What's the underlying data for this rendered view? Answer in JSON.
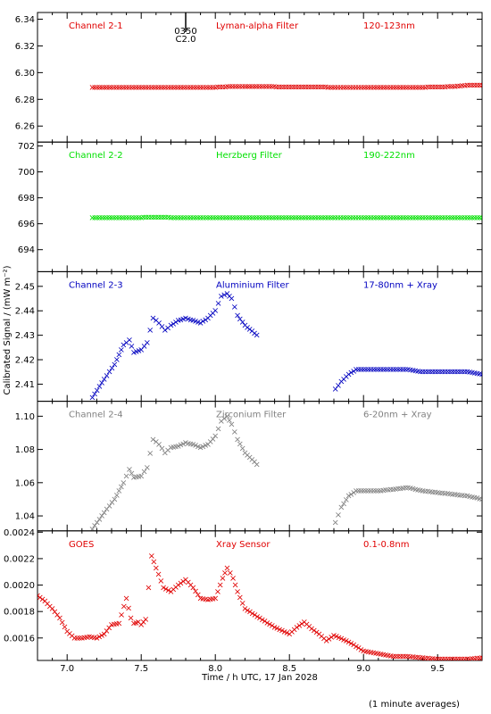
{
  "figure": {
    "xlabel": "Time / h UTC, 17 Jan 2028",
    "ylabel": "Calibrated Signal / (mW m⁻²)",
    "footnote": "(1 minute averages)",
    "marker": "0350 C2.0",
    "marker_lines": [
      "0350",
      "C2.0"
    ],
    "marker_x": 7.8
  },
  "chart_data": [
    {
      "type": "scatter",
      "channel": "Channel 2-1",
      "filter": "Lyman-alpha Filter",
      "band": "120-123nm",
      "color": "#e00000",
      "xlim": [
        6.8,
        9.8
      ],
      "ylim": [
        6.248,
        6.345
      ],
      "xticks": [
        "7.0",
        "7.5",
        "8.0",
        "8.5",
        "9.0",
        "9.5"
      ],
      "xtick_values": [
        7.0,
        7.5,
        8.0,
        8.5,
        9.0,
        9.5
      ],
      "yticks": [
        "6.26",
        "6.28",
        "6.30",
        "6.32",
        "6.34"
      ],
      "ytick_values": [
        6.26,
        6.28,
        6.3,
        6.32,
        6.34
      ],
      "series": [
        {
          "x": [
            7.17,
            7.3,
            7.45,
            7.6,
            7.75,
            7.9,
            8.0,
            8.1,
            8.2,
            8.28,
            8.81,
            9.0,
            9.2,
            9.4,
            9.6,
            9.7,
            9.8
          ],
          "y": [
            6.289,
            6.289,
            6.289,
            6.289,
            6.289,
            6.289,
            6.289,
            6.2895,
            6.2895,
            6.2895,
            6.289,
            6.289,
            6.289,
            6.289,
            6.2895,
            6.2905,
            6.2905
          ]
        }
      ]
    },
    {
      "type": "scatter",
      "channel": "Channel 2-2",
      "filter": "Herzberg Filter",
      "band": "190-222nm",
      "color": "#00e000",
      "xlim": [
        6.8,
        9.8
      ],
      "ylim": [
        692.3,
        702.3
      ],
      "xticks": [
        "7.0",
        "7.5",
        "8.0",
        "8.5",
        "9.0",
        "9.5"
      ],
      "xtick_values": [
        7.0,
        7.5,
        8.0,
        8.5,
        9.0,
        9.5
      ],
      "yticks": [
        "694",
        "696",
        "698",
        "700",
        "702"
      ],
      "ytick_values": [
        694,
        696,
        698,
        700,
        702
      ],
      "series": [
        {
          "x": [
            7.17,
            7.4,
            7.6,
            7.8,
            8.0,
            8.28,
            8.81,
            9.0,
            9.2,
            9.4,
            9.6,
            9.8
          ],
          "y": [
            696.45,
            696.45,
            696.5,
            696.45,
            696.45,
            696.45,
            696.45,
            696.45,
            696.45,
            696.45,
            696.45,
            696.45
          ]
        }
      ]
    },
    {
      "type": "scatter",
      "channel": "Channel 2-3",
      "filter": "Aluminium Filter",
      "band": "17-80nm + Xray",
      "color": "#0000c0",
      "xlim": [
        6.8,
        9.8
      ],
      "ylim": [
        2.403,
        2.456
      ],
      "xticks": [
        "7.0",
        "7.5",
        "8.0",
        "8.5",
        "9.0",
        "9.5"
      ],
      "xtick_values": [
        7.0,
        7.5,
        8.0,
        8.5,
        9.0,
        9.5
      ],
      "yticks": [
        "2.41",
        "2.42",
        "2.43",
        "2.44",
        "2.45"
      ],
      "ytick_values": [
        2.41,
        2.42,
        2.43,
        2.44,
        2.45
      ],
      "series": [
        {
          "x": [
            7.17,
            7.25,
            7.32,
            7.38,
            7.42,
            7.45,
            7.5,
            7.54,
            7.58,
            7.62,
            7.66,
            7.7,
            7.75,
            7.8,
            7.85,
            7.9,
            7.95,
            8.0,
            8.04,
            8.08,
            8.11,
            8.15,
            8.2,
            8.28
          ],
          "y": [
            2.4045,
            2.412,
            2.418,
            2.426,
            2.428,
            2.423,
            2.424,
            2.427,
            2.437,
            2.435,
            2.432,
            2.434,
            2.436,
            2.437,
            2.436,
            2.435,
            2.437,
            2.44,
            2.446,
            2.447,
            2.445,
            2.438,
            2.434,
            2.43
          ]
        },
        {
          "x": [
            8.81,
            8.85,
            8.9,
            8.95,
            9.0,
            9.1,
            9.2,
            9.3,
            9.4,
            9.5,
            9.6,
            9.7,
            9.8
          ],
          "y": [
            2.408,
            2.411,
            2.414,
            2.416,
            2.416,
            2.416,
            2.416,
            2.416,
            2.415,
            2.415,
            2.415,
            2.415,
            2.414
          ]
        }
      ]
    },
    {
      "type": "scatter",
      "channel": "Channel 2-4",
      "filter": "Zirconium Filter",
      "band": "6-20nm + Xray",
      "color": "#808080",
      "xlim": [
        6.8,
        9.8
      ],
      "ylim": [
        1.031,
        1.109
      ],
      "xticks": [
        "7.0",
        "7.5",
        "8.0",
        "8.5",
        "9.0",
        "9.5"
      ],
      "xtick_values": [
        7.0,
        7.5,
        8.0,
        8.5,
        9.0,
        9.5
      ],
      "yticks": [
        "1.04",
        "1.06",
        "1.08",
        "1.10"
      ],
      "ytick_values": [
        1.04,
        1.06,
        1.08,
        1.1
      ],
      "series": [
        {
          "x": [
            7.17,
            7.25,
            7.32,
            7.38,
            7.42,
            7.45,
            7.5,
            7.54,
            7.58,
            7.62,
            7.66,
            7.7,
            7.75,
            7.8,
            7.85,
            7.9,
            7.95,
            8.0,
            8.04,
            8.08,
            8.11,
            8.15,
            8.2,
            8.28
          ],
          "y": [
            1.032,
            1.042,
            1.05,
            1.06,
            1.068,
            1.063,
            1.064,
            1.069,
            1.086,
            1.083,
            1.078,
            1.081,
            1.082,
            1.084,
            1.083,
            1.081,
            1.083,
            1.088,
            1.097,
            1.1,
            1.095,
            1.086,
            1.078,
            1.071
          ]
        },
        {
          "x": [
            8.81,
            8.85,
            8.9,
            8.95,
            9.0,
            9.1,
            9.2,
            9.3,
            9.4,
            9.5,
            9.6,
            9.7,
            9.8
          ],
          "y": [
            1.036,
            1.045,
            1.052,
            1.055,
            1.055,
            1.055,
            1.056,
            1.057,
            1.055,
            1.054,
            1.053,
            1.052,
            1.05
          ]
        }
      ]
    },
    {
      "type": "scatter",
      "channel": "GOES",
      "filter": "Xray Sensor",
      "band": "0.1-0.8nm",
      "color": "#e00000",
      "xlim": [
        6.8,
        9.8
      ],
      "ylim": [
        0.00143,
        0.00241
      ],
      "xticks": [
        "7.0",
        "7.5",
        "8.0",
        "8.5",
        "9.0",
        "9.5"
      ],
      "xtick_values": [
        7.0,
        7.5,
        8.0,
        8.5,
        9.0,
        9.5
      ],
      "yticks": [
        "0.0016",
        "0.0018",
        "0.0020",
        "0.0022",
        "0.0024"
      ],
      "ytick_values": [
        0.0016,
        0.0018,
        0.002,
        0.0022,
        0.0024
      ],
      "series": [
        {
          "x": [
            6.8,
            6.85,
            6.9,
            6.95,
            7.0,
            7.05,
            7.1,
            7.15,
            7.2,
            7.25,
            7.3,
            7.35,
            7.4,
            7.43,
            7.45,
            7.48,
            7.5,
            7.53,
            7.57,
            7.6,
            7.65,
            7.7,
            7.75,
            7.8,
            7.85,
            7.9,
            7.95,
            8.0,
            8.05,
            8.08,
            8.12,
            8.15,
            8.2,
            8.3,
            8.4,
            8.5,
            8.55,
            8.6,
            8.65,
            8.7,
            8.75,
            8.8,
            8.9,
            9.0,
            9.1,
            9.2,
            9.3,
            9.4,
            9.5,
            9.6,
            9.7,
            9.8
          ],
          "y": [
            0.00192,
            0.00188,
            0.00182,
            0.00175,
            0.00165,
            0.0016,
            0.0016,
            0.00161,
            0.0016,
            0.00163,
            0.0017,
            0.00171,
            0.0019,
            0.00175,
            0.00171,
            0.00172,
            0.0017,
            0.00174,
            0.00222,
            0.00213,
            0.00198,
            0.00195,
            0.002,
            0.00204,
            0.00198,
            0.0019,
            0.00189,
            0.0019,
            0.00205,
            0.00213,
            0.00205,
            0.00195,
            0.00182,
            0.00175,
            0.00168,
            0.00163,
            0.00168,
            0.00172,
            0.00167,
            0.00163,
            0.00158,
            0.00162,
            0.00157,
            0.0015,
            0.00148,
            0.00146,
            0.00146,
            0.00145,
            0.00144,
            0.00144,
            0.00144,
            0.00145
          ]
        }
      ]
    }
  ]
}
